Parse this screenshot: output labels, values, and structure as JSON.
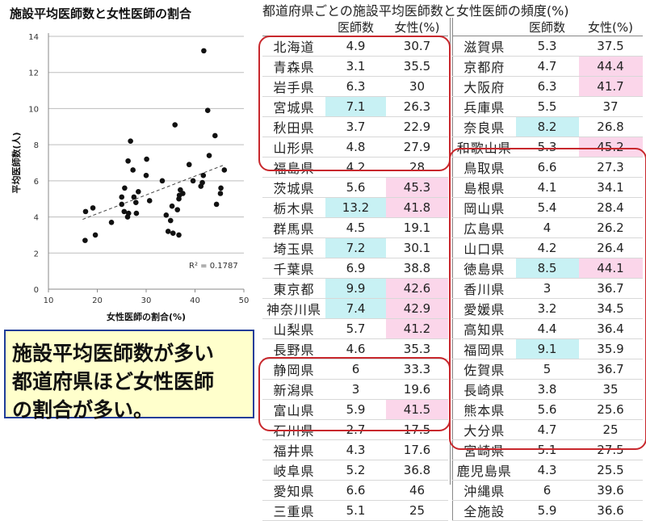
{
  "chart_data": {
    "type": "scatter",
    "title": "施設平均医師数と女性医師の割合",
    "xlabel": "女性医師の割合(%)",
    "ylabel": "平均医師数(人)",
    "xlim": [
      10,
      50
    ],
    "ylim": [
      0,
      14
    ],
    "xticks": [
      "10",
      "20",
      "30",
      "40",
      "50"
    ],
    "yticks": [
      "0",
      "2",
      "4",
      "6",
      "8",
      "10",
      "12",
      "14"
    ],
    "annotation": "R² = 0.1787",
    "trendline": "dashed",
    "points": [
      [
        30.7,
        4.9
      ],
      [
        35.5,
        3.1
      ],
      [
        30,
        6.3
      ],
      [
        26.3,
        7.1
      ],
      [
        22.9,
        3.7
      ],
      [
        27.9,
        4.8
      ],
      [
        28,
        4.2
      ],
      [
        45.3,
        5.6
      ],
      [
        41.8,
        13.2
      ],
      [
        19.1,
        4.5
      ],
      [
        30.1,
        7.2
      ],
      [
        38.8,
        6.9
      ],
      [
        42.6,
        9.9
      ],
      [
        42.9,
        7.4
      ],
      [
        41.2,
        5.7
      ],
      [
        35.3,
        4.6
      ],
      [
        33.3,
        6
      ],
      [
        19.6,
        3
      ],
      [
        41.5,
        5.9
      ],
      [
        17.5,
        2.7
      ],
      [
        17.6,
        4.3
      ],
      [
        36.8,
        5.2
      ],
      [
        46,
        6.6
      ],
      [
        25,
        5.1
      ],
      [
        37.5,
        5.3
      ],
      [
        44.4,
        4.7
      ],
      [
        41.7,
        6.3
      ],
      [
        37,
        5.5
      ],
      [
        26.8,
        8.2
      ],
      [
        45.2,
        5.3
      ],
      [
        27.3,
        6.6
      ],
      [
        34.1,
        4.1
      ],
      [
        28.4,
        5.4
      ],
      [
        26.2,
        4
      ],
      [
        26.4,
        4.2
      ],
      [
        44.1,
        8.5
      ],
      [
        36.7,
        3
      ],
      [
        34.5,
        3.2
      ],
      [
        36.4,
        4.4
      ],
      [
        35.9,
        9.1
      ],
      [
        36.7,
        5
      ],
      [
        35,
        3.8
      ],
      [
        25.6,
        5.6
      ],
      [
        25,
        4.7
      ],
      [
        27.5,
        5.1
      ],
      [
        25.5,
        4.3
      ],
      [
        39.6,
        6
      ]
    ]
  },
  "table": {
    "title": "都道府県ごとの施設平均医師数と女性医師の頻度(%)",
    "col_doctors": "医師数",
    "col_female": "女性(%)",
    "left_rows": [
      {
        "name": "北海道",
        "doctors": "4.9",
        "female": "30.7",
        "hd": false,
        "hf": false
      },
      {
        "name": "青森県",
        "doctors": "3.1",
        "female": "35.5",
        "hd": false,
        "hf": false
      },
      {
        "name": "岩手県",
        "doctors": "6.3",
        "female": "30",
        "hd": false,
        "hf": false
      },
      {
        "name": "宮城県",
        "doctors": "7.1",
        "female": "26.3",
        "hd": true,
        "hf": false
      },
      {
        "name": "秋田県",
        "doctors": "3.7",
        "female": "22.9",
        "hd": false,
        "hf": false
      },
      {
        "name": "山形県",
        "doctors": "4.8",
        "female": "27.9",
        "hd": false,
        "hf": false
      },
      {
        "name": "福島県",
        "doctors": "4.2",
        "female": "28",
        "hd": false,
        "hf": false
      },
      {
        "name": "茨城県",
        "doctors": "5.6",
        "female": "45.3",
        "hd": false,
        "hf": true
      },
      {
        "name": "栃木県",
        "doctors": "13.2",
        "female": "41.8",
        "hd": true,
        "hf": true
      },
      {
        "name": "群馬県",
        "doctors": "4.5",
        "female": "19.1",
        "hd": false,
        "hf": false
      },
      {
        "name": "埼玉県",
        "doctors": "7.2",
        "female": "30.1",
        "hd": true,
        "hf": false
      },
      {
        "name": "千葉県",
        "doctors": "6.9",
        "female": "38.8",
        "hd": false,
        "hf": false
      },
      {
        "name": "東京都",
        "doctors": "9.9",
        "female": "42.6",
        "hd": true,
        "hf": true
      },
      {
        "name": "神奈川県",
        "doctors": "7.4",
        "female": "42.9",
        "hd": true,
        "hf": true
      },
      {
        "name": "山梨県",
        "doctors": "5.7",
        "female": "41.2",
        "hd": false,
        "hf": true
      },
      {
        "name": "長野県",
        "doctors": "4.6",
        "female": "35.3",
        "hd": false,
        "hf": false
      },
      {
        "name": "静岡県",
        "doctors": "6",
        "female": "33.3",
        "hd": false,
        "hf": false
      },
      {
        "name": "新潟県",
        "doctors": "3",
        "female": "19.6",
        "hd": false,
        "hf": false
      },
      {
        "name": "富山県",
        "doctors": "5.9",
        "female": "41.5",
        "hd": false,
        "hf": true
      },
      {
        "name": "石川県",
        "doctors": "2.7",
        "female": "17.5",
        "hd": false,
        "hf": false
      },
      {
        "name": "福井県",
        "doctors": "4.3",
        "female": "17.6",
        "hd": false,
        "hf": false
      },
      {
        "name": "岐阜県",
        "doctors": "5.2",
        "female": "36.8",
        "hd": false,
        "hf": false
      },
      {
        "name": "愛知県",
        "doctors": "6.6",
        "female": "46",
        "hd": false,
        "hf": false
      },
      {
        "name": "三重県",
        "doctors": "5.1",
        "female": "25",
        "hd": false,
        "hf": false
      }
    ],
    "right_rows": [
      {
        "name": "滋賀県",
        "doctors": "5.3",
        "female": "37.5",
        "hd": false,
        "hf": false
      },
      {
        "name": "京都府",
        "doctors": "4.7",
        "female": "44.4",
        "hd": false,
        "hf": true
      },
      {
        "name": "大阪府",
        "doctors": "6.3",
        "female": "41.7",
        "hd": false,
        "hf": true
      },
      {
        "name": "兵庫県",
        "doctors": "5.5",
        "female": "37",
        "hd": false,
        "hf": false
      },
      {
        "name": "奈良県",
        "doctors": "8.2",
        "female": "26.8",
        "hd": true,
        "hf": false
      },
      {
        "name": "和歌山県",
        "doctors": "5.3",
        "female": "45.2",
        "hd": false,
        "hf": true
      },
      {
        "name": "鳥取県",
        "doctors": "6.6",
        "female": "27.3",
        "hd": false,
        "hf": false
      },
      {
        "name": "島根県",
        "doctors": "4.1",
        "female": "34.1",
        "hd": false,
        "hf": false
      },
      {
        "name": "岡山県",
        "doctors": "5.4",
        "female": "28.4",
        "hd": false,
        "hf": false
      },
      {
        "name": "広島県",
        "doctors": "4",
        "female": "26.2",
        "hd": false,
        "hf": false
      },
      {
        "name": "山口県",
        "doctors": "4.2",
        "female": "26.4",
        "hd": false,
        "hf": false
      },
      {
        "name": "徳島県",
        "doctors": "8.5",
        "female": "44.1",
        "hd": true,
        "hf": true
      },
      {
        "name": "香川県",
        "doctors": "3",
        "female": "36.7",
        "hd": false,
        "hf": false
      },
      {
        "name": "愛媛県",
        "doctors": "3.2",
        "female": "34.5",
        "hd": false,
        "hf": false
      },
      {
        "name": "高知県",
        "doctors": "4.4",
        "female": "36.4",
        "hd": false,
        "hf": false
      },
      {
        "name": "福岡県",
        "doctors": "9.1",
        "female": "35.9",
        "hd": true,
        "hf": false
      },
      {
        "name": "佐賀県",
        "doctors": "5",
        "female": "36.7",
        "hd": false,
        "hf": false
      },
      {
        "name": "長崎県",
        "doctors": "3.8",
        "female": "35",
        "hd": false,
        "hf": false
      },
      {
        "name": "熊本県",
        "doctors": "5.6",
        "female": "25.6",
        "hd": false,
        "hf": false
      },
      {
        "name": "大分県",
        "doctors": "4.7",
        "female": "25",
        "hd": false,
        "hf": false
      },
      {
        "name": "宮崎県",
        "doctors": "5.1",
        "female": "27.5",
        "hd": false,
        "hf": false
      },
      {
        "name": "鹿児島県",
        "doctors": "4.3",
        "female": "25.5",
        "hd": false,
        "hf": false
      },
      {
        "name": "沖縄県",
        "doctors": "6",
        "female": "39.6",
        "hd": false,
        "hf": false
      },
      {
        "name": "全施設",
        "doctors": "5.9",
        "female": "36.6",
        "hd": false,
        "hf": false
      }
    ]
  },
  "note": {
    "lines": [
      "施設平均医師数が多い",
      "都道府県ほど女性医師",
      "の割合が多い。"
    ]
  },
  "colors": {
    "highlight_doctors": "#c8f1f4",
    "highlight_female": "#fbd6ea",
    "group_box": "#c8282d",
    "note_bg": "#ffffcc",
    "note_border": "#1f3d99"
  }
}
